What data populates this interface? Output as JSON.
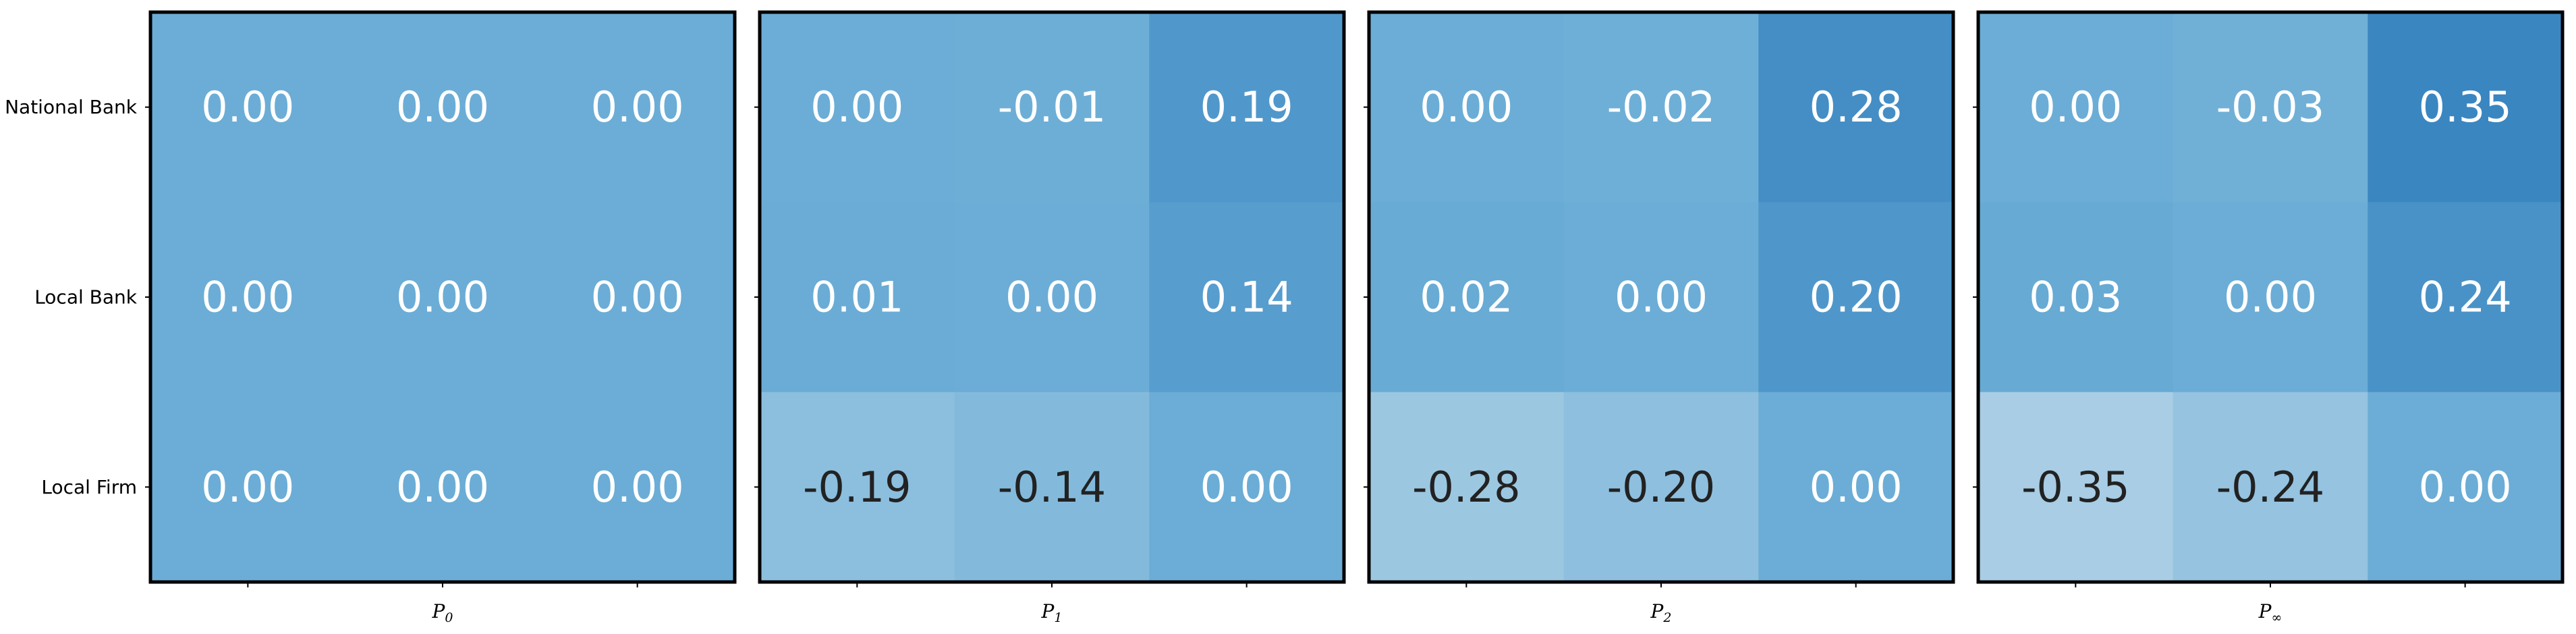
{
  "chart_data": {
    "type": "heatmap",
    "row_labels": [
      "National Bank",
      "Local Bank",
      "Local Firm"
    ],
    "panels": [
      {
        "label_base": "P",
        "label_sub": "0",
        "values": [
          [
            0.0,
            0.0,
            0.0
          ],
          [
            0.0,
            0.0,
            0.0
          ],
          [
            0.0,
            0.0,
            0.0
          ]
        ],
        "display": [
          [
            "0.00",
            "0.00",
            "0.00"
          ],
          [
            "0.00",
            "0.00",
            "0.00"
          ],
          [
            "0.00",
            "0.00",
            "0.00"
          ]
        ]
      },
      {
        "label_base": "P",
        "label_sub": "1",
        "values": [
          [
            0.0,
            -0.01,
            0.19
          ],
          [
            0.01,
            0.0,
            0.14
          ],
          [
            -0.19,
            -0.14,
            0.0
          ]
        ],
        "display": [
          [
            "0.00",
            "-0.01",
            "0.19"
          ],
          [
            "0.01",
            "0.00",
            "0.14"
          ],
          [
            "-0.19",
            "-0.14",
            "0.00"
          ]
        ]
      },
      {
        "label_base": "P",
        "label_sub": "2",
        "values": [
          [
            0.0,
            -0.02,
            0.28
          ],
          [
            0.02,
            0.0,
            0.2
          ],
          [
            -0.28,
            -0.2,
            0.0
          ]
        ],
        "display": [
          [
            "0.00",
            "-0.02",
            "0.28"
          ],
          [
            "0.02",
            "0.00",
            "0.20"
          ],
          [
            "-0.28",
            "-0.20",
            "0.00"
          ]
        ]
      },
      {
        "label_base": "P",
        "label_sub": "∞",
        "values": [
          [
            0.0,
            -0.03,
            0.35
          ],
          [
            0.03,
            0.0,
            0.24
          ],
          [
            -0.35,
            -0.24,
            0.0
          ]
        ],
        "display": [
          [
            "0.00",
            "-0.03",
            "0.35"
          ],
          [
            "0.03",
            "0.00",
            "0.24"
          ],
          [
            "-0.35",
            "-0.24",
            "0.00"
          ]
        ]
      }
    ],
    "colormap": "Blues",
    "vlim": [
      -0.35,
      0.35
    ],
    "grid": false,
    "colors": {
      "low": "#a8cde4",
      "mid": "#6badd6",
      "high": "#3a86c1",
      "text_light": "#ffffff",
      "text_dark": "#222222",
      "frame": "#000000"
    }
  }
}
